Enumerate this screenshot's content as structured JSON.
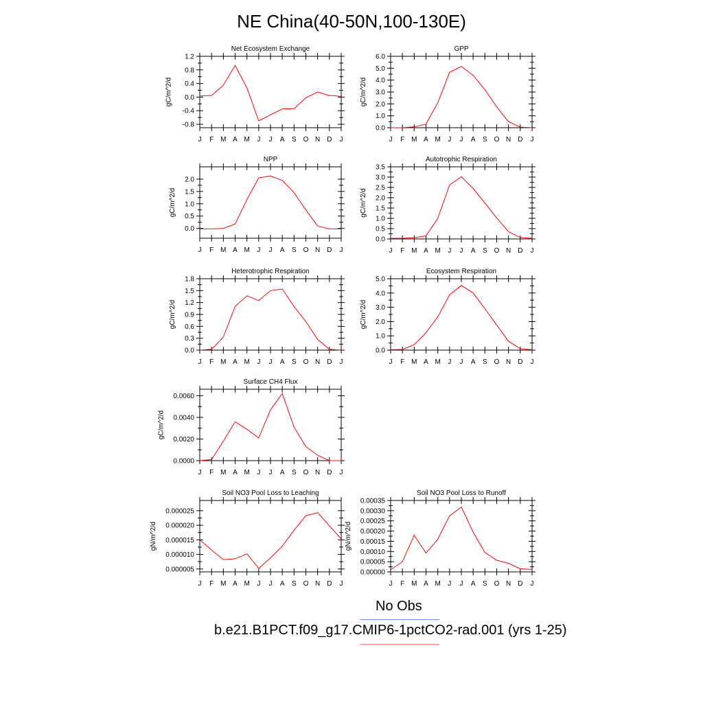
{
  "title": "NE China(40-50N,100-130E)",
  "month_labels": [
    "J",
    "F",
    "M",
    "A",
    "M",
    "J",
    "J",
    "A",
    "S",
    "O",
    "N",
    "D",
    "J"
  ],
  "legend": {
    "obs_label": "No Obs",
    "obs_color": "#7b8cf0",
    "model_label": "b.e21.B1PCT.f09_g17.CMIP6-1pctCO2-rad.001 (yrs 1-25)",
    "model_color": "#f07b7b"
  },
  "line_color": "#ff0000",
  "chart_data": [
    {
      "type": "line",
      "title": "Net Ecosystem Exchange",
      "ylabel": "gC/m^2/d",
      "ylim": [
        -0.9,
        1.2
      ],
      "yticks": [
        -0.8,
        -0.4,
        0.0,
        0.4,
        0.8,
        1.2
      ],
      "ytick_labels": [
        "-0.8",
        "-0.4",
        "0.0",
        "0.4",
        "0.8",
        "1.2"
      ],
      "categories": [
        "J",
        "F",
        "M",
        "A",
        "M",
        "J",
        "J",
        "A",
        "S",
        "O",
        "N",
        "D",
        "J"
      ],
      "values": [
        0.03,
        0.05,
        0.35,
        0.93,
        0.27,
        -0.7,
        -0.52,
        -0.35,
        -0.34,
        -0.02,
        0.15,
        0.05,
        0.02
      ]
    },
    {
      "type": "line",
      "title": "GPP",
      "ylabel": "gC/m^2/d",
      "ylim": [
        0.0,
        6.0
      ],
      "yticks": [
        0.0,
        1.0,
        2.0,
        3.0,
        4.0,
        5.0,
        6.0
      ],
      "ytick_labels": [
        "0.0",
        "1.0",
        "2.0",
        "3.0",
        "4.0",
        "5.0",
        "6.0"
      ],
      "categories": [
        "J",
        "F",
        "M",
        "A",
        "M",
        "J",
        "J",
        "A",
        "S",
        "O",
        "N",
        "D",
        "J"
      ],
      "values": [
        0.0,
        0.0,
        0.07,
        0.3,
        2.1,
        4.65,
        5.15,
        4.4,
        3.2,
        1.75,
        0.5,
        0.05,
        0.0
      ]
    },
    {
      "type": "line",
      "title": "NPP",
      "ylabel": "gC/m^2/d",
      "ylim": [
        -0.4,
        2.5
      ],
      "yticks": [
        0.0,
        0.5,
        1.0,
        1.5,
        2.0
      ],
      "ytick_labels": [
        "0.0",
        "0.5",
        "1.0",
        "1.5",
        "2.0"
      ],
      "categories": [
        "J",
        "F",
        "M",
        "A",
        "M",
        "J",
        "J",
        "A",
        "S",
        "O",
        "N",
        "D",
        "J"
      ],
      "values": [
        -0.02,
        -0.02,
        0.0,
        0.18,
        1.17,
        2.05,
        2.13,
        1.95,
        1.45,
        0.75,
        0.1,
        -0.02,
        -0.02
      ]
    },
    {
      "type": "line",
      "title": "Autotrophic Respiration",
      "ylabel": "gC/m^2/d",
      "ylim": [
        0.0,
        3.5
      ],
      "yticks": [
        0.0,
        0.5,
        1.0,
        1.5,
        2.0,
        2.5,
        3.0,
        3.5
      ],
      "ytick_labels": [
        "0.0",
        "0.5",
        "1.0",
        "1.5",
        "2.0",
        "2.5",
        "3.0",
        "3.5"
      ],
      "categories": [
        "J",
        "F",
        "M",
        "A",
        "M",
        "J",
        "J",
        "A",
        "S",
        "O",
        "N",
        "D",
        "J"
      ],
      "values": [
        0.03,
        0.03,
        0.06,
        0.15,
        1.0,
        2.62,
        3.02,
        2.45,
        1.75,
        1.02,
        0.35,
        0.07,
        0.03
      ]
    },
    {
      "type": "line",
      "title": "Heterotrophic Respiration",
      "ylabel": "gC/m^2/d",
      "ylim": [
        0.0,
        1.8
      ],
      "yticks": [
        0.0,
        0.3,
        0.6,
        0.9,
        1.2,
        1.5,
        1.8
      ],
      "ytick_labels": [
        "0.0",
        "0.3",
        "0.6",
        "0.9",
        "1.2",
        "1.5",
        "1.8"
      ],
      "categories": [
        "J",
        "F",
        "M",
        "A",
        "M",
        "J",
        "J",
        "A",
        "S",
        "O",
        "N",
        "D",
        "J"
      ],
      "values": [
        0.0,
        0.02,
        0.33,
        1.1,
        1.37,
        1.25,
        1.5,
        1.54,
        1.1,
        0.72,
        0.27,
        0.02,
        0.0
      ]
    },
    {
      "type": "line",
      "title": "Ecosystem Respiration",
      "ylabel": "gC/m^2/d",
      "ylim": [
        0.0,
        5.0
      ],
      "yticks": [
        0.0,
        1.0,
        2.0,
        3.0,
        4.0,
        5.0
      ],
      "ytick_labels": [
        "0.0",
        "1.0",
        "2.0",
        "3.0",
        "4.0",
        "5.0"
      ],
      "categories": [
        "J",
        "F",
        "M",
        "A",
        "M",
        "J",
        "J",
        "A",
        "S",
        "O",
        "N",
        "D",
        "J"
      ],
      "values": [
        0.03,
        0.05,
        0.38,
        1.22,
        2.33,
        3.87,
        4.53,
        4.0,
        2.9,
        1.76,
        0.62,
        0.1,
        0.03
      ]
    },
    {
      "type": "line",
      "title": "Surface CH4 Flux",
      "ylabel": "gC/m^2/d",
      "ylim": [
        0.0,
        0.0066
      ],
      "yticks": [
        0.0,
        0.002,
        0.004,
        0.006
      ],
      "ytick_labels": [
        "0.0000",
        "0.0020",
        "0.0040",
        "0.0060"
      ],
      "categories": [
        "J",
        "F",
        "M",
        "A",
        "M",
        "J",
        "J",
        "A",
        "S",
        "O",
        "N",
        "D",
        "J"
      ],
      "values": [
        0.0,
        0.0001,
        0.0018,
        0.0036,
        0.0029,
        0.0021,
        0.0047,
        0.0062,
        0.0031,
        0.0013,
        0.0005,
        0.0,
        0.0
      ]
    },
    {
      "type": "line",
      "title": "Soil NO3 Pool Loss to Leaching",
      "ylabel": "gN/m^2/d",
      "ylim": [
        4e-06,
        2.85e-05
      ],
      "yticks": [
        5e-06,
        1e-05,
        1.5e-05,
        2e-05,
        2.5e-05
      ],
      "ytick_labels": [
        "0.000005",
        "0.000010",
        "0.000015",
        "0.000020",
        "0.000025"
      ],
      "categories": [
        "J",
        "F",
        "M",
        "A",
        "M",
        "J",
        "J",
        "A",
        "S",
        "O",
        "N",
        "D",
        "J"
      ],
      "values": [
        1.5e-05,
        1.15e-05,
        8.2e-06,
        8.5e-06,
        1.02e-05,
        5.2e-06,
        8.8e-06,
        1.28e-05,
        1.83e-05,
        2.33e-05,
        2.43e-05,
        1.98e-05,
        1.53e-05
      ]
    },
    {
      "type": "line",
      "title": "Soil NO3 Pool Loss to Runoff",
      "ylabel": "gN/m^2/d",
      "ylim": [
        0.0,
        0.00035
      ],
      "yticks": [
        0.0,
        5e-05,
        0.0001,
        0.00015,
        0.0002,
        0.00025,
        0.0003,
        0.00035
      ],
      "ytick_labels": [
        "0.00000",
        "0.00005",
        "0.00010",
        "0.00015",
        "0.00020",
        "0.00025",
        "0.00030",
        "0.00035"
      ],
      "categories": [
        "J",
        "F",
        "M",
        "A",
        "M",
        "J",
        "J",
        "A",
        "S",
        "O",
        "N",
        "D",
        "J"
      ],
      "values": [
        1e-05,
        5e-05,
        0.00018,
        9.2e-05,
        0.00016,
        0.000275,
        0.000318,
        0.000195,
        9.5e-05,
        5.7e-05,
        4.2e-05,
        1.5e-05,
        1.2e-05
      ]
    }
  ]
}
